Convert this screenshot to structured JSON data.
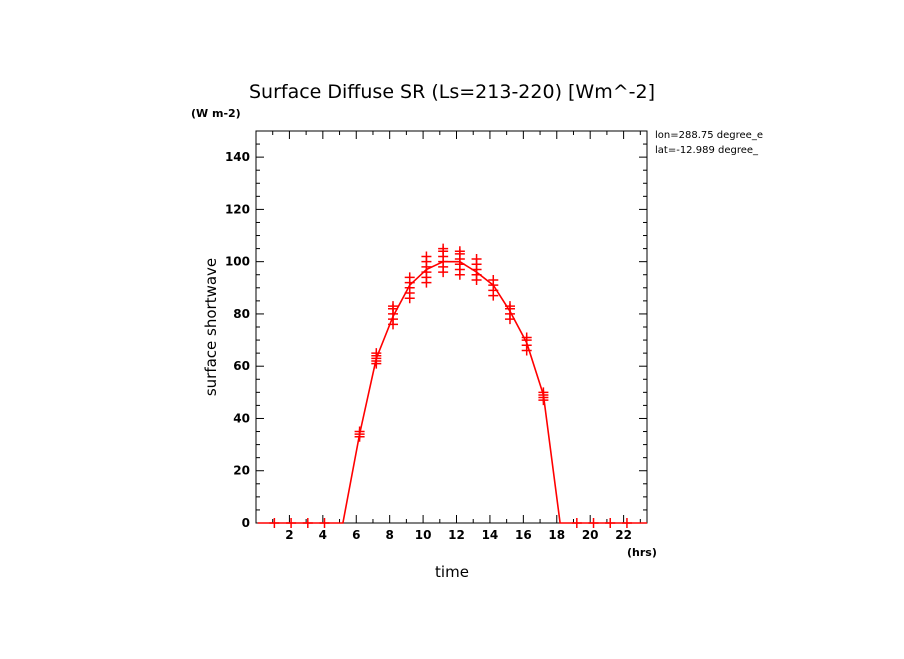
{
  "chart_data": {
    "type": "line",
    "title": "Surface Diffuse SR (Ls=213-220) [Wm^-2]",
    "y_units": "(W m-2)",
    "x_units": "(hrs)",
    "xlabel": "time",
    "ylabel": "surface shortwave",
    "xlim": [
      0,
      23.4
    ],
    "ylim": [
      0,
      150
    ],
    "xticks": [
      2,
      4,
      6,
      8,
      10,
      12,
      14,
      16,
      18,
      20,
      22
    ],
    "yticks": [
      0,
      20,
      40,
      60,
      80,
      100,
      120,
      140
    ],
    "info": [
      "lon=288.75 degree_e",
      "lat=-12.989 degree_"
    ],
    "line_color": "#ff0000",
    "series": [
      {
        "x": [
          0.1,
          2.1,
          4.1,
          5.2,
          6.2,
          7.2,
          8.2,
          9.2,
          10.2,
          11.2,
          12.2,
          13.2,
          14.2,
          15.2,
          16.2,
          17.2,
          18.2,
          19.2,
          20.2,
          21.2,
          22.2,
          23.4
        ],
        "values": [
          0,
          0,
          0,
          0,
          34,
          63,
          79,
          91,
          97,
          100,
          100,
          96,
          91,
          81,
          69,
          49,
          0,
          0,
          0,
          0,
          0,
          0
        ]
      }
    ],
    "scatter": [
      {
        "x": 1.1,
        "values": [
          0
        ]
      },
      {
        "x": 2.1,
        "values": [
          0
        ]
      },
      {
        "x": 3.1,
        "values": [
          0
        ]
      },
      {
        "x": 4.1,
        "values": [
          0
        ]
      },
      {
        "x": 6.2,
        "values": [
          33,
          34,
          35
        ]
      },
      {
        "x": 7.2,
        "values": [
          61,
          62,
          63,
          64,
          65
        ]
      },
      {
        "x": 8.2,
        "values": [
          76,
          78,
          80,
          82,
          83
        ]
      },
      {
        "x": 9.2,
        "values": [
          86,
          88,
          90,
          92,
          94
        ]
      },
      {
        "x": 10.2,
        "values": [
          92,
          94,
          96,
          98,
          100,
          102
        ]
      },
      {
        "x": 11.2,
        "values": [
          96,
          98,
          100,
          102,
          104,
          105
        ]
      },
      {
        "x": 12.2,
        "values": [
          95,
          97,
          99,
          101,
          103,
          104
        ]
      },
      {
        "x": 13.2,
        "values": [
          93,
          95,
          97,
          99,
          101
        ]
      },
      {
        "x": 14.2,
        "values": [
          87,
          89,
          91,
          93
        ]
      },
      {
        "x": 15.2,
        "values": [
          78,
          80,
          82,
          83
        ]
      },
      {
        "x": 16.2,
        "values": [
          66,
          68,
          70,
          71
        ]
      },
      {
        "x": 17.2,
        "values": [
          47,
          48,
          49,
          50
        ]
      },
      {
        "x": 19.2,
        "values": [
          0
        ]
      },
      {
        "x": 20.2,
        "values": [
          0
        ]
      },
      {
        "x": 21.2,
        "values": [
          0
        ]
      },
      {
        "x": 22.2,
        "values": [
          0
        ]
      }
    ]
  }
}
